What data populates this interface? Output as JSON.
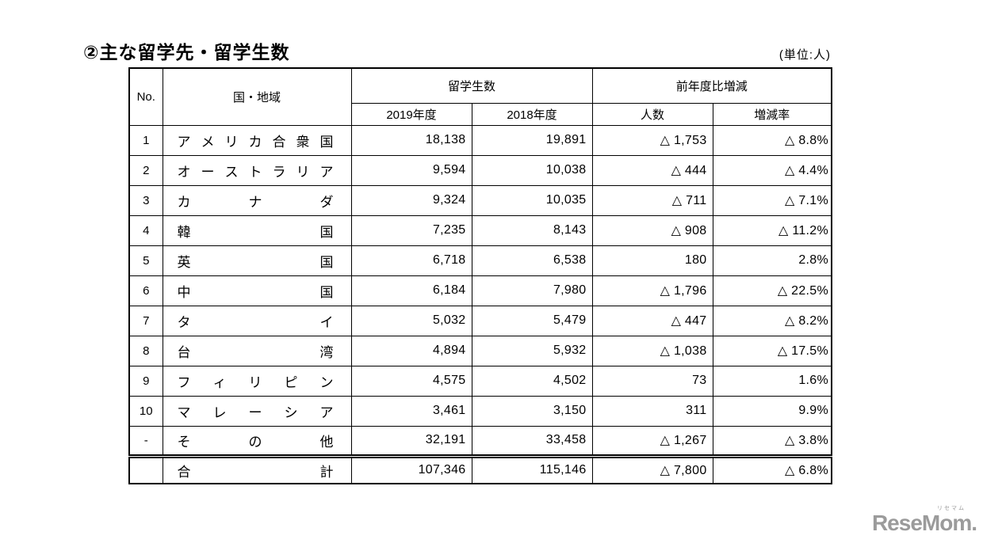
{
  "title": "②主な留学先・留学生数",
  "unit_label": "(単位:人)",
  "table": {
    "headers": {
      "no": "No.",
      "country": "国・地域",
      "students_group": "留学生数",
      "yoy_group": "前年度比増減",
      "y2019": "2019年度",
      "y2018": "2018年度",
      "count": "人数",
      "rate": "増減率"
    },
    "rows": [
      {
        "no": "1",
        "country": "アメリカ合衆国",
        "y2019": "18,138",
        "y2018": "19,891",
        "diff": "△ 1,753",
        "rate": "△ 8.8%"
      },
      {
        "no": "2",
        "country": "オーストラリア",
        "y2019": "9,594",
        "y2018": "10,038",
        "diff": "△ 444",
        "rate": "△ 4.4%"
      },
      {
        "no": "3",
        "country": "カナダ",
        "y2019": "9,324",
        "y2018": "10,035",
        "diff": "△ 711",
        "rate": "△ 7.1%"
      },
      {
        "no": "4",
        "country": "韓国",
        "y2019": "7,235",
        "y2018": "8,143",
        "diff": "△ 908",
        "rate": "△ 11.2%"
      },
      {
        "no": "5",
        "country": "英国",
        "y2019": "6,718",
        "y2018": "6,538",
        "diff": "180",
        "rate": "2.8%"
      },
      {
        "no": "6",
        "country": "中国",
        "y2019": "6,184",
        "y2018": "7,980",
        "diff": "△ 1,796",
        "rate": "△ 22.5%"
      },
      {
        "no": "7",
        "country": "タイ",
        "y2019": "5,032",
        "y2018": "5,479",
        "diff": "△ 447",
        "rate": "△ 8.2%"
      },
      {
        "no": "8",
        "country": "台湾",
        "y2019": "4,894",
        "y2018": "5,932",
        "diff": "△ 1,038",
        "rate": "△ 17.5%"
      },
      {
        "no": "9",
        "country": "フィリピン",
        "y2019": "4,575",
        "y2018": "4,502",
        "diff": "73",
        "rate": "1.6%"
      },
      {
        "no": "10",
        "country": "マレーシア",
        "y2019": "3,461",
        "y2018": "3,150",
        "diff": "311",
        "rate": "9.9%"
      },
      {
        "no": "-",
        "country": "その他",
        "y2019": "32,191",
        "y2018": "33,458",
        "diff": "△ 1,267",
        "rate": "△ 3.8%"
      }
    ],
    "total_row": {
      "no": "",
      "country": "合計",
      "y2019": "107,346",
      "y2018": "115,146",
      "diff": "△ 7,800",
      "rate": "△ 6.8%"
    }
  },
  "logo": {
    "text": "ReseMom.",
    "ruby": "リセマム",
    "color": "#9b9b9b"
  }
}
